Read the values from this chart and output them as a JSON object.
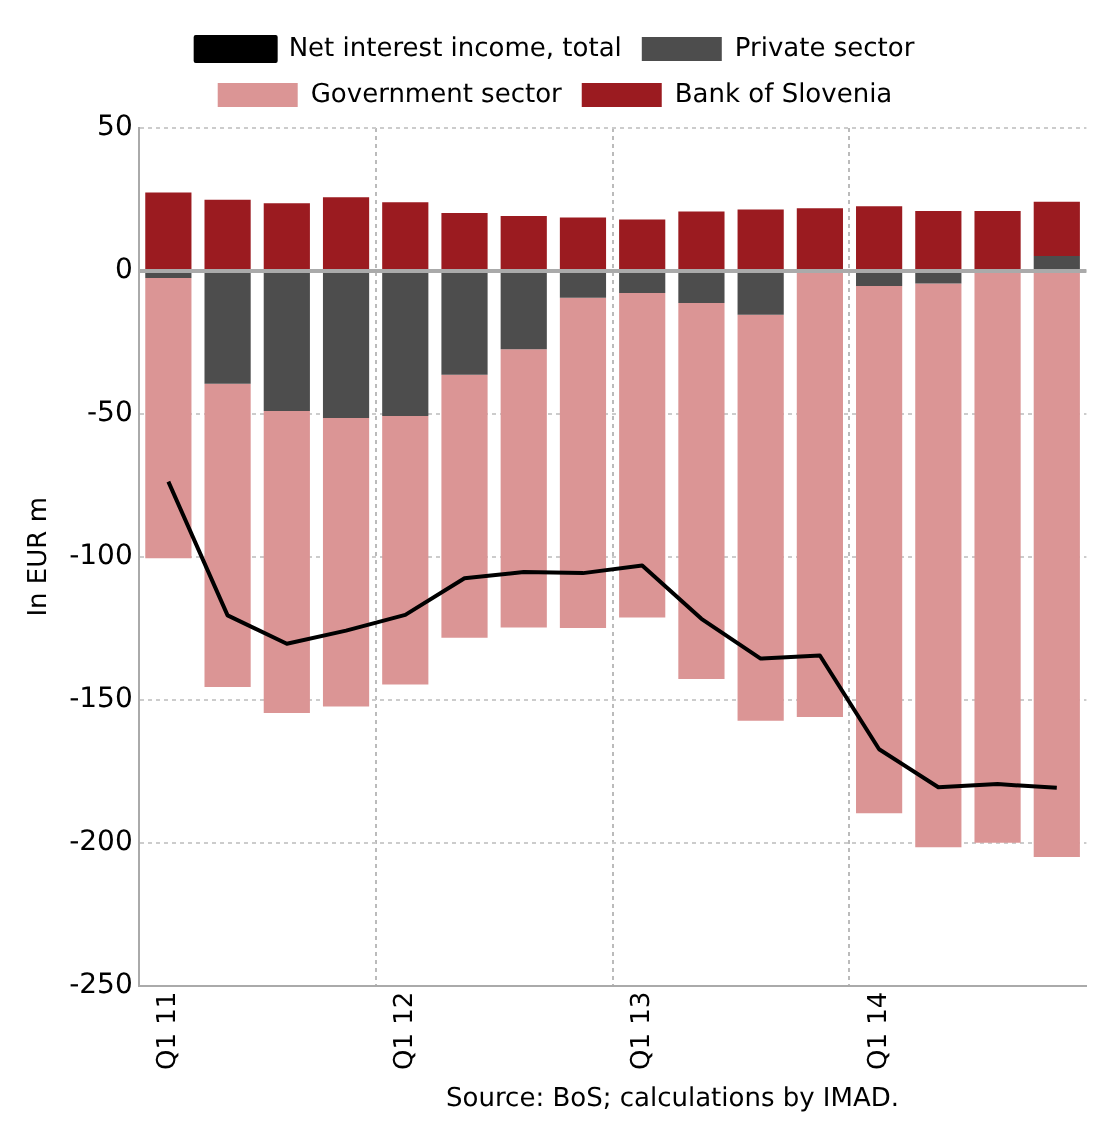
{
  "chart_data": {
    "type": "bar",
    "stacked": true,
    "ylabel": "In EUR m",
    "annotations": [
      "Source: BoS; calculations by IMAD."
    ],
    "categories": [
      "Q1 11",
      null,
      null,
      null,
      "Q1 12",
      null,
      null,
      null,
      "Q1 13",
      null,
      null,
      null,
      "Q1 14",
      null,
      null,
      null
    ],
    "series": [
      {
        "name": "Private sector",
        "color": "#4d4d4d",
        "values": [
          -2.5,
          -39.5,
          -49,
          -51.4,
          -50.7,
          -36.3,
          -27.4,
          -9.4,
          -7.7,
          -11.2,
          -15.3,
          0,
          -5.3,
          -4.4,
          0,
          5.2
        ]
      },
      {
        "name": "Government sector",
        "color": "#db9595",
        "values": [
          -98,
          -106,
          -105.6,
          -101,
          -94,
          -92,
          -97.3,
          -115.5,
          -113.5,
          -131.5,
          -142,
          -156,
          -184.4,
          -197.2,
          -200,
          -205
        ]
      },
      {
        "name": "Bank of Slovenia",
        "color": "#9b1b20",
        "values": [
          27.4,
          24.9,
          23.7,
          25.8,
          24,
          20.3,
          19.2,
          18.7,
          18,
          20.8,
          21.5,
          21.9,
          22.6,
          21,
          21,
          19
        ]
      },
      {
        "name": "Net interest income, total",
        "type": "line",
        "color": "#000000",
        "values": [
          -73.7,
          -120.5,
          -130.4,
          -125.8,
          -120.3,
          -107.5,
          -105.3,
          -105.7,
          -103,
          -121.7,
          -135.6,
          -134.5,
          -167.3,
          -180.6,
          -179.5,
          -180.8
        ]
      }
    ],
    "ref_lines": [
      {
        "axis": "y",
        "value": 0,
        "color": "#aaaaaa"
      }
    ],
    "ylim": [
      -250,
      50
    ],
    "yticks": [
      -250,
      -200,
      -150,
      -100,
      -50,
      0,
      50
    ],
    "grid": true,
    "legend": "top",
    "marker": "none"
  }
}
